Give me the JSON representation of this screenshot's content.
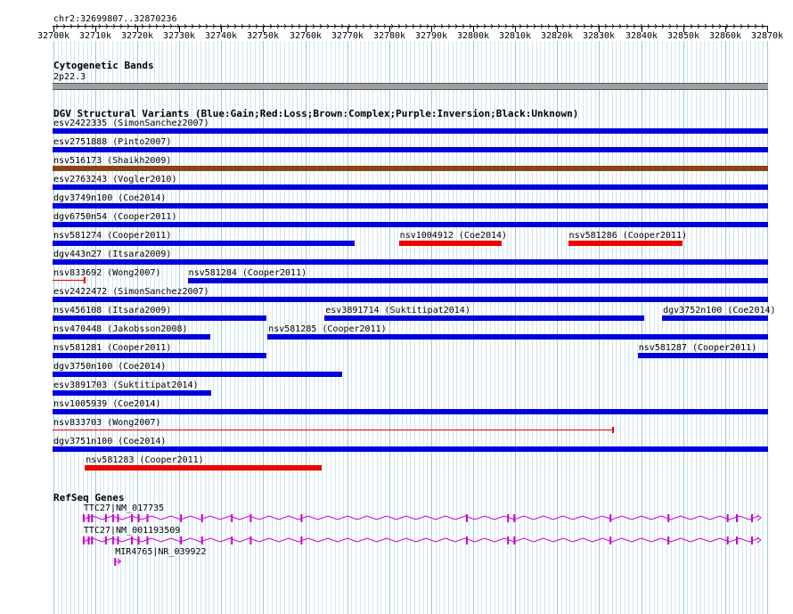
{
  "ruler": {
    "location": "chr2:32699807..32870236",
    "ticks": [
      "32700k",
      "32710k",
      "32720k",
      "32730k",
      "32740k",
      "32750k",
      "32760k",
      "32770k",
      "32780k",
      "32790k",
      "32800k",
      "32810k",
      "32820k",
      "32830k",
      "32840k",
      "32850k",
      "32860k",
      "32870k"
    ]
  },
  "cytoband": {
    "title": "Cytogenetic Bands",
    "band": "2p22.3",
    "color": "#a0a0a0"
  },
  "dgv": {
    "title": "DGV Structural Variants (Blue:Gain;Red:Loss;Brown:Complex;Purple:Inversion;Black:Unknown)",
    "colors": {
      "gain": "#0000dd",
      "loss": "#ee0000",
      "complex": "#8b4513"
    },
    "features": [
      {
        "label": "esv2422335 (SimonSanchez2007)",
        "start": 32699807,
        "end": 32870236,
        "type": "gain",
        "row": 0
      },
      {
        "label": "esv2751888 (Pinto2007)",
        "start": 32699807,
        "end": 32870236,
        "type": "gain",
        "row": 1
      },
      {
        "label": "nsv516173 (Shaikh2009)",
        "start": 32699807,
        "end": 32870236,
        "type": "complex",
        "row": 2
      },
      {
        "label": "esv2763243 (Vogler2010)",
        "start": 32699807,
        "end": 32870236,
        "type": "gain",
        "row": 3
      },
      {
        "label": "dgv3749n100 (Coe2014)",
        "start": 32699807,
        "end": 32870236,
        "type": "gain",
        "row": 4
      },
      {
        "label": "dgv6750n54 (Cooper2011)",
        "start": 32699807,
        "end": 32870236,
        "type": "gain",
        "row": 5
      },
      {
        "label": "nsv581274 (Cooper2011)",
        "start": 32699807,
        "end": 32771800,
        "type": "gain",
        "row": 6
      },
      {
        "label": "nsv1004912 (Coe2014)",
        "start": 32782300,
        "end": 32806800,
        "type": "loss",
        "row": 6
      },
      {
        "label": "nsv581286 (Cooper2011)",
        "start": 32822600,
        "end": 32849800,
        "type": "loss",
        "row": 6
      },
      {
        "label": "dgv443n27 (Itsara2009)",
        "start": 32699807,
        "end": 32870236,
        "type": "gain",
        "row": 7
      },
      {
        "label": "nsv833692 (Wong2007)",
        "start": 32699807,
        "end": 32707500,
        "type": "loss",
        "thin": true,
        "row": 8
      },
      {
        "label": "nsv581284 (Cooper2011)",
        "start": 32732000,
        "end": 32870236,
        "type": "gain",
        "row": 8
      },
      {
        "label": "esv2422472 (SimonSanchez2007)",
        "start": 32699807,
        "end": 32870236,
        "type": "gain",
        "row": 9
      },
      {
        "label": "nsv456108 (Itsara2009)",
        "start": 32699807,
        "end": 32750800,
        "type": "gain",
        "row": 10
      },
      {
        "label": "esv3891714 (Suktitipat2014)",
        "start": 32764600,
        "end": 32840800,
        "type": "gain",
        "row": 10
      },
      {
        "label": "dgv3752n100 (Coe2014)",
        "start": 32845000,
        "end": 32870236,
        "type": "gain",
        "row": 10
      },
      {
        "label": "nsv470448 (Jakobsson2008)",
        "start": 32699807,
        "end": 32737400,
        "type": "gain",
        "row": 11
      },
      {
        "label": "nsv581285 (Cooper2011)",
        "start": 32751000,
        "end": 32870236,
        "type": "gain",
        "row": 11
      },
      {
        "label": "nsv581281 (Cooper2011)",
        "start": 32699807,
        "end": 32750800,
        "type": "gain",
        "row": 12
      },
      {
        "label": "nsv581287 (Cooper2011)",
        "start": 32839200,
        "end": 32870236,
        "type": "gain",
        "row": 12
      },
      {
        "label": "dgv3750n100 (Coe2014)",
        "start": 32699807,
        "end": 32768800,
        "type": "gain",
        "row": 13
      },
      {
        "label": "esv3891703 (Suktitipat2014)",
        "start": 32699807,
        "end": 32737600,
        "type": "gain",
        "row": 14
      },
      {
        "label": "nsv1005939 (Coe2014)",
        "start": 32699807,
        "end": 32870236,
        "type": "gain",
        "row": 15
      },
      {
        "label": "nsv833703 (Wong2007)",
        "start": 32699807,
        "end": 32833400,
        "type": "loss",
        "thin": true,
        "row": 16
      },
      {
        "label": "dgv3751n100 (Coe2014)",
        "start": 32699807,
        "end": 32870236,
        "type": "gain",
        "row": 17
      },
      {
        "label": "nsv581283 (Cooper2011)",
        "start": 32707500,
        "end": 32764000,
        "type": "loss",
        "row": 18
      }
    ]
  },
  "refseq": {
    "title": "RefSeq Genes",
    "color": "#cc00cc",
    "genes": [
      {
        "label": "TTC27|NM_017735",
        "start": 32707000,
        "end": 32870236
      },
      {
        "label": "TTC27|NM_001193509",
        "start": 32707000,
        "end": 32870236
      },
      {
        "label": "MIR4765|NR_039922",
        "start": 32714500,
        "end": 32715800
      }
    ]
  }
}
